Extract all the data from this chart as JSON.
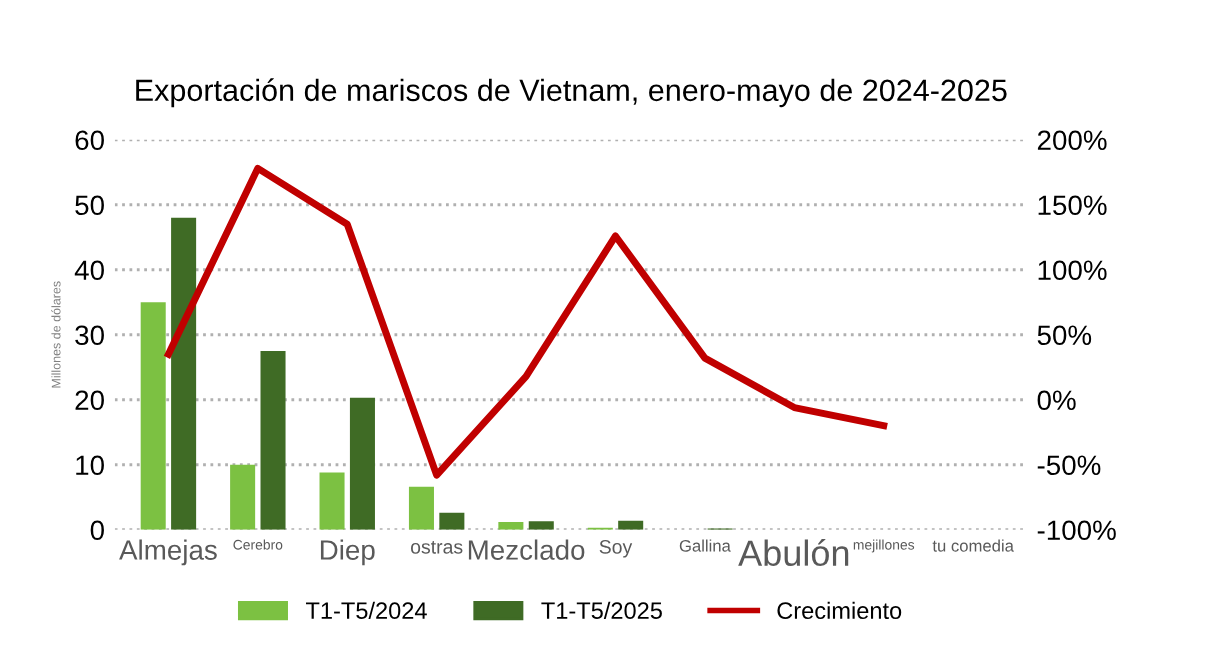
{
  "chart_data": {
    "type": "bar",
    "title": "Exportación de mariscos de Vietnam, enero-mayo de 2024-2025",
    "ylabel": "Millones de dólares",
    "categories": [
      "Almejas",
      "Cerebro",
      "Diep",
      "ostras",
      "Mezclado",
      "Soy",
      "Gallina",
      "Abulón",
      "mejillones",
      "tu comedia"
    ],
    "series": [
      {
        "name": "T1-T5/2024",
        "color": "#7cc142",
        "values": [
          35,
          10,
          8.8,
          6.6,
          1.2,
          0.3,
          0,
          0,
          0,
          0
        ]
      },
      {
        "name": "T1-T5/2025",
        "color": "#3f6b25",
        "values": [
          48,
          27.5,
          20.3,
          2.6,
          1.3,
          1.4,
          0.2,
          0,
          0,
          0
        ]
      },
      {
        "name": "Crecimiento",
        "type": "line",
        "axis": "y2",
        "color": "#c00000",
        "values": [
          35,
          178,
          135,
          -58,
          18,
          126,
          32,
          -6,
          -20,
          null
        ]
      }
    ],
    "ylim": [
      0,
      60
    ],
    "yticks": [
      0,
      10,
      20,
      30,
      40,
      50,
      60
    ],
    "y2lim": [
      -100,
      200
    ],
    "y2ticks": [
      {
        "value": -100,
        "label": "-100%"
      },
      {
        "value": -50,
        "label": "-50%"
      },
      {
        "value": 0,
        "label": "0%"
      },
      {
        "value": 50,
        "label": "50%"
      },
      {
        "value": 100,
        "label": "100%"
      },
      {
        "value": 150,
        "label": "150%"
      },
      {
        "value": 200,
        "label": "200%"
      }
    ],
    "grid": "y",
    "legend": "bottom",
    "marker": "none",
    "line_style": "solid"
  }
}
